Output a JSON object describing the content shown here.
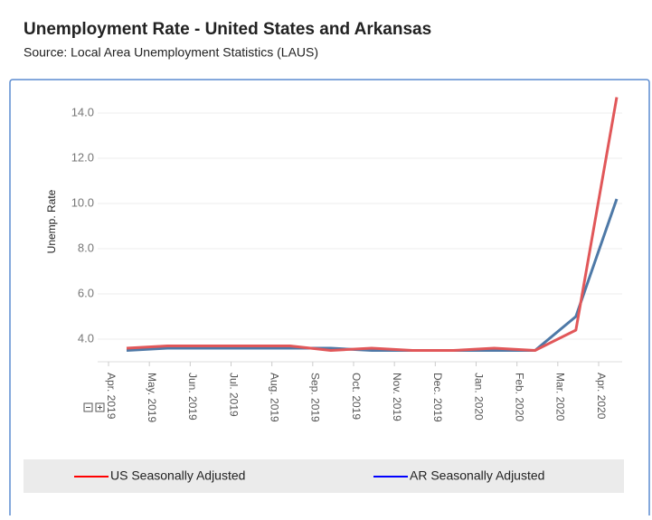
{
  "chart_data": {
    "type": "line",
    "title": "Unemployment Rate - United States and Arkansas",
    "subtitle": "Source:  Local Area Unemployment Statistics (LAUS)",
    "y_label": "Unemp. Rate",
    "categories": [
      "Apr. 2019",
      "May. 2019",
      "Jun. 2019",
      "Jul. 2019",
      "Aug. 2019",
      "Sep. 2019",
      "Oct. 2019",
      "Nov. 2019",
      "Dec. 2019",
      "Jan. 2020",
      "Feb. 2020",
      "Mar. 2020",
      "Apr. 2020"
    ],
    "series": [
      {
        "name": "US Seasonally Adjusted",
        "color": "#e15759",
        "legend_color": "#ff0000",
        "values": [
          3.6,
          3.7,
          3.7,
          3.7,
          3.7,
          3.5,
          3.6,
          3.5,
          3.5,
          3.6,
          3.5,
          4.4,
          14.7
        ]
      },
      {
        "name": "AR Seasonally Adjusted",
        "color": "#4e79a7",
        "legend_color": "#0000ff",
        "values": [
          3.5,
          3.6,
          3.6,
          3.6,
          3.6,
          3.6,
          3.5,
          3.5,
          3.5,
          3.5,
          3.5,
          5.0,
          10.2
        ]
      }
    ],
    "ylim": [
      3,
      15
    ],
    "yticks": [
      {
        "value": 4,
        "label": "4.0"
      },
      {
        "value": 6,
        "label": "6.0"
      },
      {
        "value": 8,
        "label": "8.0"
      },
      {
        "value": 10,
        "label": "10.0"
      },
      {
        "value": 12,
        "label": "12.0"
      },
      {
        "value": 14,
        "label": "14.0"
      }
    ],
    "grid": true
  }
}
